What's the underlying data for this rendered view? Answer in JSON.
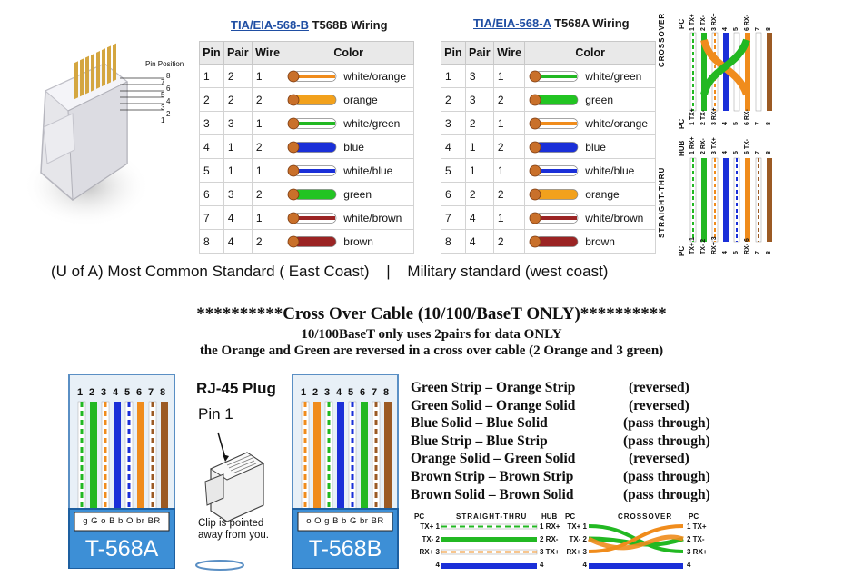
{
  "tables": [
    {
      "title_std": "TIA/EIA-568-B",
      "title_rest": "T568B Wiring",
      "headers": [
        "Pin",
        "Pair",
        "Wire",
        "Color"
      ],
      "rows": [
        {
          "pin": "1",
          "pair": "2",
          "wire": "1",
          "color": "white/orange",
          "base": "#f08c1c",
          "striped": true
        },
        {
          "pin": "2",
          "pair": "2",
          "wire": "2",
          "color": "orange",
          "base": "#f2a11c",
          "striped": false
        },
        {
          "pin": "3",
          "pair": "3",
          "wire": "1",
          "color": "white/green",
          "base": "#22b822",
          "striped": true
        },
        {
          "pin": "4",
          "pair": "1",
          "wire": "2",
          "color": "blue",
          "base": "#1a2fd8",
          "striped": false
        },
        {
          "pin": "5",
          "pair": "1",
          "wire": "1",
          "color": "white/blue",
          "base": "#1a2fd8",
          "striped": true
        },
        {
          "pin": "6",
          "pair": "3",
          "wire": "2",
          "color": "green",
          "base": "#22c422",
          "striped": false
        },
        {
          "pin": "7",
          "pair": "4",
          "wire": "1",
          "color": "white/brown",
          "base": "#9b2424",
          "striped": true
        },
        {
          "pin": "8",
          "pair": "4",
          "wire": "2",
          "color": "brown",
          "base": "#9b2424",
          "striped": false
        }
      ]
    },
    {
      "title_std": "TIA/EIA-568-A",
      "title_rest": "T568A Wiring",
      "headers": [
        "Pin",
        "Pair",
        "Wire",
        "Color"
      ],
      "rows": [
        {
          "pin": "1",
          "pair": "3",
          "wire": "1",
          "color": "white/green",
          "base": "#22b822",
          "striped": true
        },
        {
          "pin": "2",
          "pair": "3",
          "wire": "2",
          "color": "green",
          "base": "#22c422",
          "striped": false
        },
        {
          "pin": "3",
          "pair": "2",
          "wire": "1",
          "color": "white/orange",
          "base": "#f08c1c",
          "striped": true
        },
        {
          "pin": "4",
          "pair": "1",
          "wire": "2",
          "color": "blue",
          "base": "#1a2fd8",
          "striped": false
        },
        {
          "pin": "5",
          "pair": "1",
          "wire": "1",
          "color": "white/blue",
          "base": "#1a2fd8",
          "striped": true
        },
        {
          "pin": "6",
          "pair": "2",
          "wire": "2",
          "color": "orange",
          "base": "#f2a11c",
          "striped": false
        },
        {
          "pin": "7",
          "pair": "4",
          "wire": "1",
          "color": "white/brown",
          "base": "#9b2424",
          "striped": true
        },
        {
          "pin": "8",
          "pair": "4",
          "wire": "2",
          "color": "brown",
          "base": "#9b2424",
          "striped": false
        }
      ]
    }
  ],
  "plug_photo": {
    "label": "Pin Position",
    "pins": [
      "8",
      "7",
      "6",
      "5",
      "4",
      "3",
      "2",
      "1"
    ]
  },
  "caption": {
    "left": "(U of A) Most Common Standard ( East Coast)",
    "sep": "|",
    "right": "Military standard (west coast)"
  },
  "crossover": {
    "heading": "**********Cross Over Cable  (10/100/BaseT ONLY)**********",
    "line1": "10/100BaseT only uses 2pairs for data  ONLY",
    "line2": "the Orange and Green are reversed in a cross over cable (2 Orange and 3 green)"
  },
  "pairs_list": [
    {
      "text": "Green Strip  –  Orange Strip",
      "status": "(reversed)"
    },
    {
      "text": "Green Solid –  Orange Solid",
      "status": "(reversed)"
    },
    {
      "text": "Blue Solid –  Blue Solid",
      "status": "(pass through)"
    },
    {
      "text": "Blue Strip –  Blue Strip",
      "status": "(pass through)"
    },
    {
      "text": "Orange Solid –  Green Solid",
      "status": "(reversed)"
    },
    {
      "text": "Brown Strip –  Brown Strip",
      "status": "(pass through)"
    },
    {
      "text": "Brown Solid –  Brown Solid",
      "status": "(pass through)"
    }
  ],
  "connectors": {
    "a_label": "T-568A",
    "a_codes": "g G o B b O br BR",
    "b_label": "T-568B",
    "b_codes": "o O g B b G br BR",
    "pin_numbers": [
      "1",
      "2",
      "3",
      "4",
      "5",
      "6",
      "7",
      "8"
    ]
  },
  "rj45": {
    "title": "RJ-45 Plug",
    "pin1": "Pin 1",
    "clip": "Clip is pointed away from you."
  },
  "side_diagram": {
    "crossover_label": "CROSSOVER",
    "straight_label": "STRAIGHT-THRU",
    "pc": "PC",
    "hub": "HUB",
    "top_labels": [
      "1 TX+",
      "2 TX-",
      "3 RX+",
      "4",
      "5",
      "6 RX-",
      "7",
      "8"
    ],
    "mid_labels": [
      "1 TX+",
      "2 TX-",
      "3 RX+",
      "4",
      "5",
      "6 RX-",
      "7",
      "8"
    ],
    "hub_labels": [
      "1 RX+",
      "2 RX-",
      "3 TX+",
      "4",
      "5",
      "6 TX-",
      "7",
      "8"
    ],
    "bot_labels": [
      "TX+ 1",
      "TX- 2",
      "RX+ 3",
      "4",
      "5",
      "RX- 6",
      "7",
      "8"
    ]
  },
  "bottom_diagram": {
    "left_pc": "PC",
    "left_title": "STRAIGHT-THRU",
    "left_hub": "HUB",
    "right_pc": "PC",
    "right_title": "CROSSOVER",
    "right_pc2": "PC",
    "left_rows": [
      "TX+ 1",
      "TX- 2",
      "RX+ 3",
      "4"
    ],
    "left_hub_rows": [
      "1 RX+",
      "2 RX-",
      "3 TX+",
      "4"
    ],
    "right_rows": [
      "TX+ 1",
      "TX- 2",
      "RX+ 3",
      "4"
    ],
    "right_pc_rows": [
      "1 TX+",
      "2 TX-",
      "3 RX+",
      "4"
    ]
  }
}
